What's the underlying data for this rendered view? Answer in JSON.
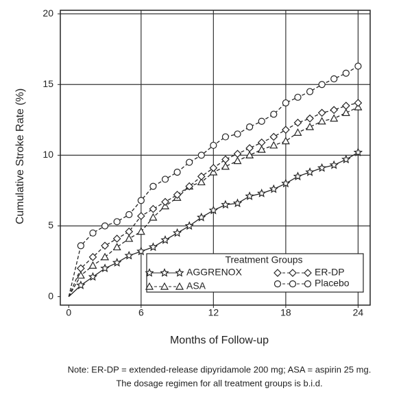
{
  "chart_data": {
    "type": "line",
    "y_label": "Cumulative Stroke Rate (%)",
    "x_label": "Months of Follow-up",
    "legend_title": "Treatment Groups",
    "notes": [
      "Note: ER-DP = extended-release dipyridamole 200 mg; ASA = aspirin 25 mg.",
      "The dosage regimen for all treatment groups is b.i.d."
    ],
    "x": [
      0,
      1,
      2,
      3,
      4,
      5,
      6,
      7,
      8,
      9,
      10,
      11,
      12,
      13,
      14,
      15,
      16,
      17,
      18,
      19,
      20,
      21,
      22,
      23,
      24
    ],
    "xlim": [
      -0.7,
      25
    ],
    "xticks": [
      0,
      6,
      12,
      18,
      24
    ],
    "ylim": [
      -0.6,
      20.25
    ],
    "yticks": [
      0,
      5,
      10,
      15,
      20
    ],
    "grid": true,
    "series": [
      {
        "name": "AGGRENOX",
        "color": "#222222",
        "marker": "star",
        "line_style": "solid",
        "values": [
          0,
          0.8,
          1.4,
          2.0,
          2.4,
          2.9,
          3.2,
          3.5,
          4.0,
          4.5,
          5.0,
          5.6,
          6.1,
          6.5,
          6.6,
          7.1,
          7.3,
          7.6,
          8.0,
          8.5,
          8.8,
          9.1,
          9.3,
          9.7,
          10.2
        ]
      },
      {
        "name": "ASA",
        "color": "#222222",
        "marker": "triangle",
        "line_style": "dashed",
        "values": [
          0,
          1.5,
          2.2,
          2.8,
          3.5,
          4.1,
          4.6,
          5.6,
          6.4,
          7.0,
          7.8,
          8.1,
          8.8,
          9.2,
          9.6,
          10.0,
          10.4,
          10.7,
          11.0,
          11.6,
          12.0,
          12.4,
          12.6,
          13.0,
          13.4
        ]
      },
      {
        "name": "ER-DP",
        "color": "#222222",
        "marker": "diamond",
        "line_style": "dashed",
        "values": [
          0,
          2.0,
          2.8,
          3.6,
          4.1,
          4.6,
          5.7,
          6.2,
          6.7,
          7.2,
          7.8,
          8.5,
          9.1,
          9.7,
          10.1,
          10.5,
          10.9,
          11.3,
          11.8,
          12.3,
          12.6,
          13.0,
          13.2,
          13.5,
          13.7
        ]
      },
      {
        "name": "Placebo",
        "color": "#222222",
        "marker": "circle",
        "line_style": "dashed",
        "values": [
          0,
          3.6,
          4.5,
          5.0,
          5.3,
          5.8,
          6.8,
          7.8,
          8.3,
          8.8,
          9.5,
          10.0,
          10.7,
          11.3,
          11.5,
          12.0,
          12.4,
          12.9,
          13.7,
          14.1,
          14.5,
          15.0,
          15.4,
          15.8,
          16.3
        ]
      }
    ]
  }
}
